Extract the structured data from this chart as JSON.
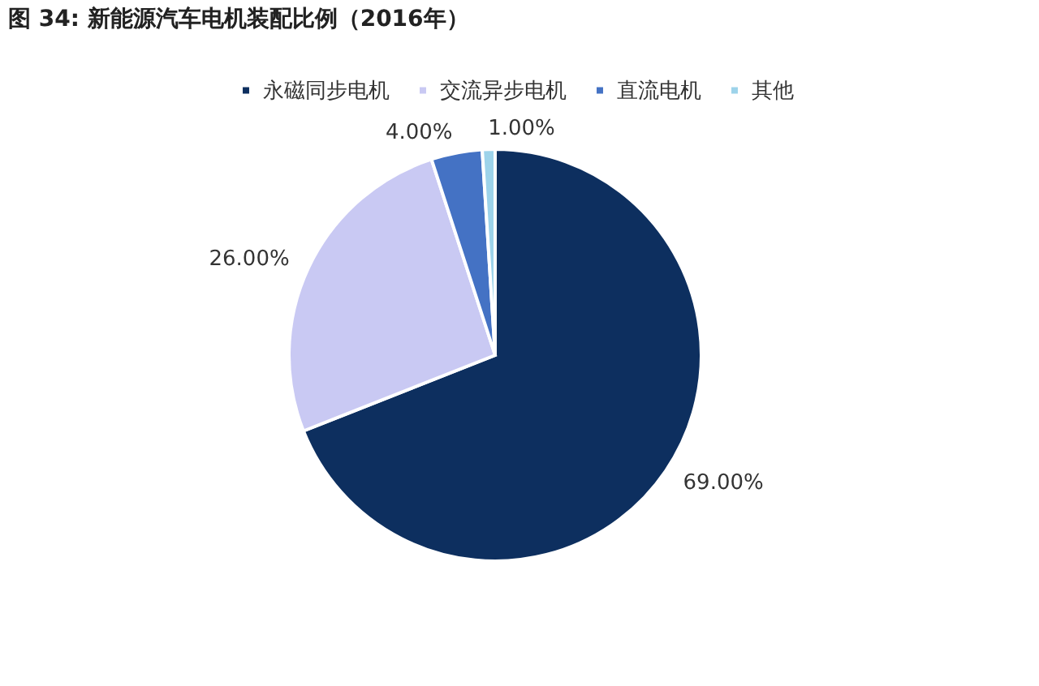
{
  "chart_data": {
    "type": "pie",
    "title": "图 34:  新能源汽车电机装配比例（2016年）",
    "categories": [
      "永磁同步电机",
      "交流异步电机",
      "直流电机",
      "其他"
    ],
    "values": [
      69,
      26,
      4,
      1
    ],
    "value_labels": [
      "69.00%",
      "26.00%",
      "4.00%",
      "1.00%"
    ],
    "colors": [
      "#0d2f5f",
      "#c9c9f3",
      "#4472c4",
      "#9dd3ea"
    ],
    "legend": "top"
  }
}
